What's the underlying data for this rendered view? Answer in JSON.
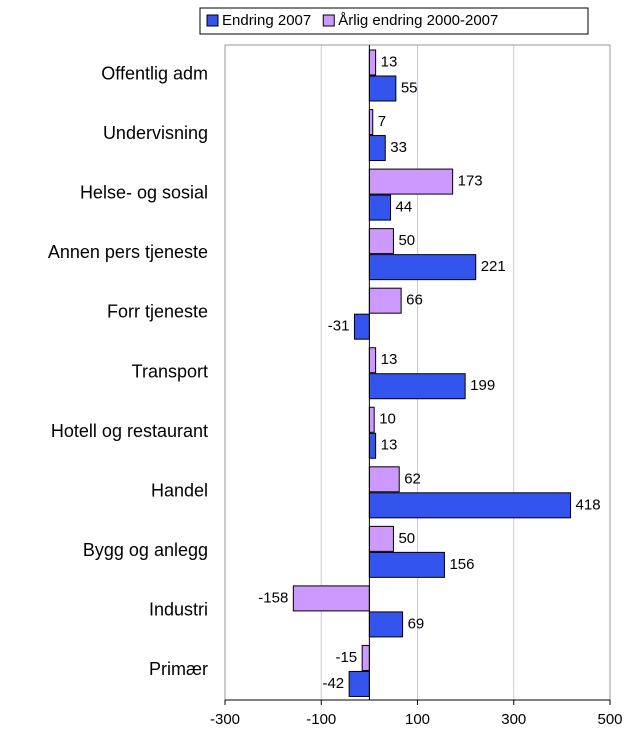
{
  "chart_data": {
    "type": "bar",
    "orientation": "horizontal",
    "categories": [
      "Offentlig adm",
      "Undervisning",
      "Helse- og sosial",
      "Annen pers tjeneste",
      "Forr tjeneste",
      "Transport",
      "Hotell og restaurant",
      "Handel",
      "Bygg og anlegg",
      "Industri",
      "Primær"
    ],
    "series": [
      {
        "name": "Endring 2007",
        "color": "#3355ee",
        "values": [
          55,
          33,
          44,
          221,
          -31,
          199,
          13,
          418,
          156,
          69,
          -42
        ]
      },
      {
        "name": "Årlig endring 2000-2007",
        "color": "#cc99ff",
        "values": [
          13,
          7,
          173,
          50,
          66,
          13,
          10,
          62,
          50,
          -158,
          -15
        ]
      }
    ],
    "xlim": [
      -300,
      500
    ],
    "xticks": [
      -300,
      -100,
      100,
      300,
      500
    ],
    "grid": true,
    "legend": "top"
  }
}
